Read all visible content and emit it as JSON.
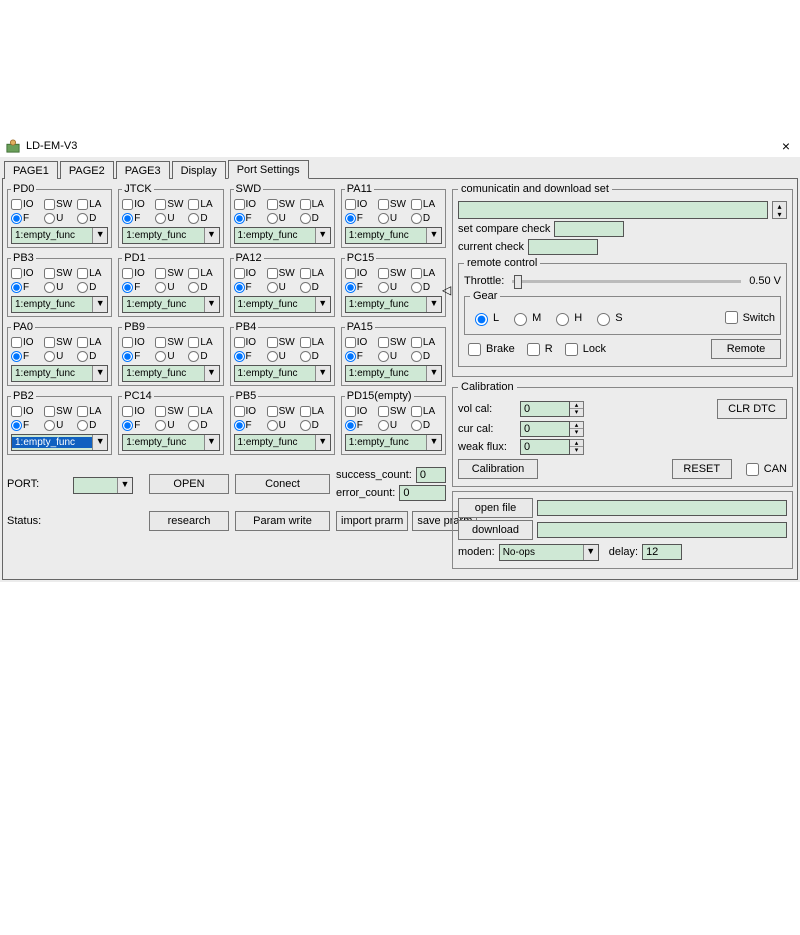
{
  "window": {
    "title": "LD-EM-V3",
    "close": "×"
  },
  "tabs": [
    "PAGE1",
    "PAGE2",
    "PAGE3",
    "Display",
    "Port Settings"
  ],
  "activeTab": 4,
  "portCheckLabels": [
    "IO",
    "SW",
    "LA"
  ],
  "portRadioLabels": [
    "F",
    "U",
    "D"
  ],
  "ports": [
    {
      "name": "PD0",
      "func": "1:empty_func",
      "sel": false
    },
    {
      "name": "JTCK",
      "func": "1:empty_func",
      "sel": false
    },
    {
      "name": "SWD",
      "func": "1:empty_func",
      "sel": false
    },
    {
      "name": "PA11",
      "func": "1:empty_func",
      "sel": false
    },
    {
      "name": "PB3",
      "func": "1:empty_func",
      "sel": false
    },
    {
      "name": "PD1",
      "func": "1:empty_func",
      "sel": false
    },
    {
      "name": "PA12",
      "func": "1:empty_func",
      "sel": false
    },
    {
      "name": "PC15",
      "func": "1:empty_func",
      "sel": false
    },
    {
      "name": "PA0",
      "func": "1:empty_func",
      "sel": false
    },
    {
      "name": "PB9",
      "func": "1:empty_func",
      "sel": false
    },
    {
      "name": "PB4",
      "func": "1:empty_func",
      "sel": false
    },
    {
      "name": "PA15",
      "func": "1:empty_func",
      "sel": false
    },
    {
      "name": "PB2",
      "func": "1:empty_func",
      "sel": true
    },
    {
      "name": "PC14",
      "func": "1:empty_func",
      "sel": false
    },
    {
      "name": "PB5",
      "func": "1:empty_func",
      "sel": false
    },
    {
      "name": "PD15(empty)",
      "func": "1:empty_func",
      "sel": false
    }
  ],
  "bottom": {
    "portLabel": "PORT:",
    "open": "OPEN",
    "conect": "Conect",
    "statusLabel": "Status:",
    "research": "research",
    "paramWrite": "Param write",
    "importPrarm": "import prarm",
    "savePrarm": "save prarm",
    "successLabel": "success_count:",
    "successVal": "0",
    "errorLabel": "error_count:",
    "errorVal": "0"
  },
  "comm": {
    "legend": "comunicatin and download set",
    "setCompare": "set compare check",
    "currentCheck": "current check",
    "remoteLegend": "remote control",
    "throttleLabel": "Throttle:",
    "throttleVal": "0.50 V",
    "gearLegend": "Gear",
    "gearOpts": [
      "L",
      "M",
      "H",
      "S"
    ],
    "switch": "Switch",
    "brake": "Brake",
    "r": "R",
    "lock": "Lock",
    "remoteBtn": "Remote"
  },
  "calib": {
    "legend": "Calibration",
    "volCal": "vol cal:",
    "volVal": "0",
    "clrDtc": "CLR DTC",
    "curCal": "cur cal:",
    "curVal": "0",
    "weakFlux": "weak flux:",
    "weakVal": "0",
    "calibBtn": "Calibration",
    "reset": "RESET",
    "can": "CAN"
  },
  "dl": {
    "openFile": "open file",
    "download": "download",
    "moden": "moden:",
    "modenVal": "No-ops",
    "delay": "delay:",
    "delayVal": "12"
  },
  "colors": {
    "inputBg": "#cfe8d5",
    "panelBg": "#ececec",
    "hlBg": "#1060c0"
  }
}
